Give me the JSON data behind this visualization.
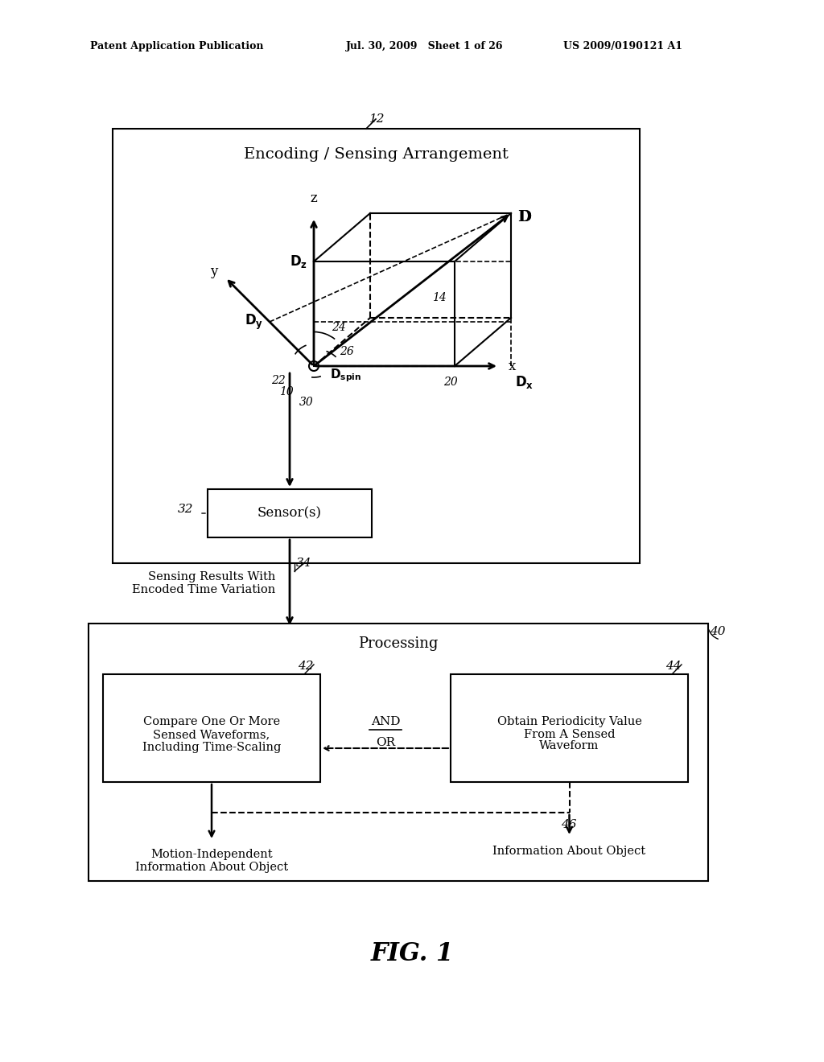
{
  "bg_color": "#ffffff",
  "text_color": "#000000",
  "header_left": "Patent Application Publication",
  "header_mid": "Jul. 30, 2009   Sheet 1 of 26",
  "header_right": "US 2009/0190121 A1",
  "fig_caption": "FIG. 1",
  "top_box_label": "Encoding / Sensing Arrangement",
  "top_box_ref": "12",
  "sensor_box_label": "Sensor(s)",
  "sensor_box_ref": "32",
  "sensing_results_line1": "Sensing Results With",
  "sensing_results_line2": "Encoded Time Variation",
  "sensing_results_ref": "34",
  "processing_box_label": "Processing",
  "processing_box_ref": "40",
  "left_box_line1": "Compare One Or More",
  "left_box_line2": "Sensed Waveforms,",
  "left_box_line3": "Including Time-Scaling",
  "left_box_ref": "42",
  "right_box_line1": "Obtain Periodicity Value",
  "right_box_line2": "From A Sensed",
  "right_box_line3": "Waveform",
  "right_box_ref": "44",
  "and_text": "AND",
  "or_text": "OR",
  "output_left_line1": "Motion-Independent",
  "output_left_line2": "Information About Object",
  "output_right": "Information About Object",
  "ref_46": "46",
  "ref_10": "10",
  "ref_14": "14",
  "ref_20": "20",
  "ref_22": "22",
  "ref_24": "24",
  "ref_26": "26",
  "ref_30": "30"
}
